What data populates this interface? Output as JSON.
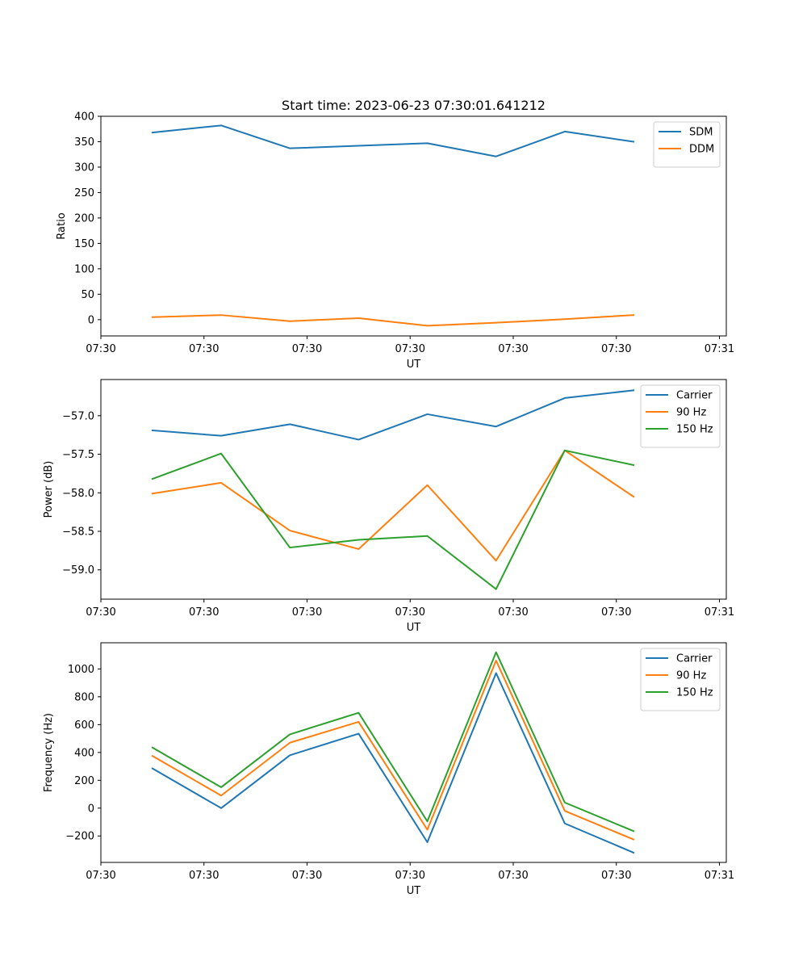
{
  "figure": {
    "title": "Start time: 2023-06-23 07:30:01.641212"
  },
  "chart_data": [
    {
      "type": "line",
      "xlabel": "UT",
      "ylabel": "Ratio",
      "x": [
        0,
        1,
        2,
        3,
        4,
        5,
        6,
        7
      ],
      "xlim": [
        -0.75,
        8.35
      ],
      "xticks": [
        -0.75,
        0.75,
        2.25,
        3.75,
        5.25,
        6.75,
        8.25
      ],
      "xtick_labels": [
        "07:30",
        "07:30",
        "07:30",
        "07:30",
        "07:30",
        "07:30",
        "07:31"
      ],
      "ylim": [
        -32,
        400
      ],
      "yticks": [
        0,
        50,
        100,
        150,
        200,
        250,
        300,
        350,
        400
      ],
      "ytick_labels": [
        "0",
        "50",
        "100",
        "150",
        "200",
        "250",
        "300",
        "350",
        "400"
      ],
      "legend": "top-right",
      "series": [
        {
          "name": "SDM",
          "color": "#1f77b4",
          "values": [
            368,
            382,
            337,
            342,
            347,
            321,
            370,
            350
          ]
        },
        {
          "name": "DDM",
          "color": "#ff7f0e",
          "values": [
            5,
            9,
            -3,
            3,
            -12,
            -6,
            1,
            9
          ]
        }
      ]
    },
    {
      "type": "line",
      "xlabel": "UT",
      "ylabel": "Power (dB)",
      "x": [
        0,
        1,
        2,
        3,
        4,
        5,
        6,
        7
      ],
      "xlim": [
        -0.75,
        8.35
      ],
      "xticks": [
        -0.75,
        0.75,
        2.25,
        3.75,
        5.25,
        6.75,
        8.25
      ],
      "xtick_labels": [
        "07:30",
        "07:30",
        "07:30",
        "07:30",
        "07:30",
        "07:30",
        "07:31"
      ],
      "ylim": [
        -59.38,
        -56.53
      ],
      "yticks": [
        -59.0,
        -58.5,
        -58.0,
        -57.5,
        -57.0
      ],
      "ytick_labels": [
        "−59.0",
        "−58.5",
        "−58.0",
        "−57.5",
        "−57.0"
      ],
      "legend": "top-right",
      "series": [
        {
          "name": "Carrier",
          "color": "#1f77b4",
          "values": [
            -57.19,
            -57.26,
            -57.11,
            -57.31,
            -56.98,
            -57.14,
            -56.77,
            -56.67
          ]
        },
        {
          "name": "90 Hz",
          "color": "#ff7f0e",
          "values": [
            -58.01,
            -57.87,
            -58.49,
            -58.73,
            -57.9,
            -58.88,
            -57.45,
            -58.05
          ]
        },
        {
          "name": "150 Hz",
          "color": "#2ca02c",
          "values": [
            -57.82,
            -57.49,
            -58.71,
            -58.61,
            -58.56,
            -59.25,
            -57.45,
            -57.64
          ]
        }
      ]
    },
    {
      "type": "line",
      "xlabel": "UT",
      "ylabel": "Frequency (Hz)",
      "x": [
        0,
        1,
        2,
        3,
        4,
        5,
        6,
        7
      ],
      "xlim": [
        -0.75,
        8.35
      ],
      "xticks": [
        -0.75,
        0.75,
        2.25,
        3.75,
        5.25,
        6.75,
        8.25
      ],
      "xtick_labels": [
        "07:30",
        "07:30",
        "07:30",
        "07:30",
        "07:30",
        "07:30",
        "07:31"
      ],
      "ylim": [
        -390,
        1188
      ],
      "yticks": [
        -200,
        0,
        200,
        400,
        600,
        800,
        1000
      ],
      "ytick_labels": [
        "−200",
        "0",
        "200",
        "400",
        "600",
        "800",
        "1000"
      ],
      "legend": "top-right",
      "series": [
        {
          "name": "Carrier",
          "color": "#1f77b4",
          "values": [
            285,
            0,
            380,
            535,
            -245,
            970,
            -110,
            -320
          ]
        },
        {
          "name": "90 Hz",
          "color": "#ff7f0e",
          "values": [
            375,
            90,
            470,
            620,
            -155,
            1060,
            -20,
            -225
          ]
        },
        {
          "name": "150 Hz",
          "color": "#2ca02c",
          "values": [
            435,
            150,
            530,
            685,
            -95,
            1120,
            40,
            -165
          ]
        }
      ]
    }
  ]
}
